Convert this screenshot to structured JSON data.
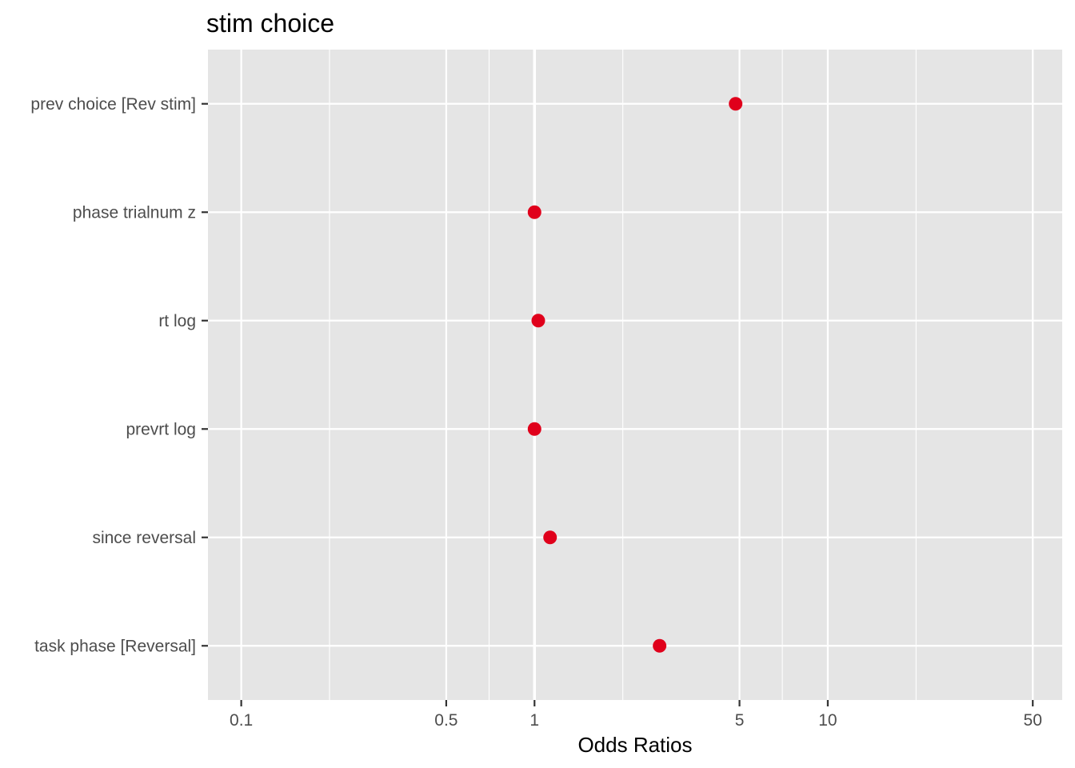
{
  "chart_data": {
    "type": "scatter",
    "title": "stim choice",
    "xlabel": "Odds Ratios",
    "ylabel": "",
    "x_scale": "log10",
    "xlim": [
      0.077,
      63.0
    ],
    "x_ticks": [
      0.1,
      0.5,
      1,
      5,
      10,
      50
    ],
    "x_tick_labels": [
      "0.1",
      "0.5",
      "1",
      "5",
      "10",
      "50"
    ],
    "x_minor_gridlines": [
      0.2,
      0.7,
      2,
      7,
      20
    ],
    "reference_line_x": 1,
    "grid": true,
    "legend": "none",
    "point_color": "#e0001b",
    "panel_color": "#e5e5e5",
    "categories": [
      "prev choice [Rev stim]",
      "phase trialnum z",
      "rt log",
      "prevrt log",
      "since reversal",
      "task phase [Reversal]"
    ],
    "values": [
      4.85,
      1.0,
      1.03,
      1.0,
      1.13,
      2.67
    ]
  }
}
